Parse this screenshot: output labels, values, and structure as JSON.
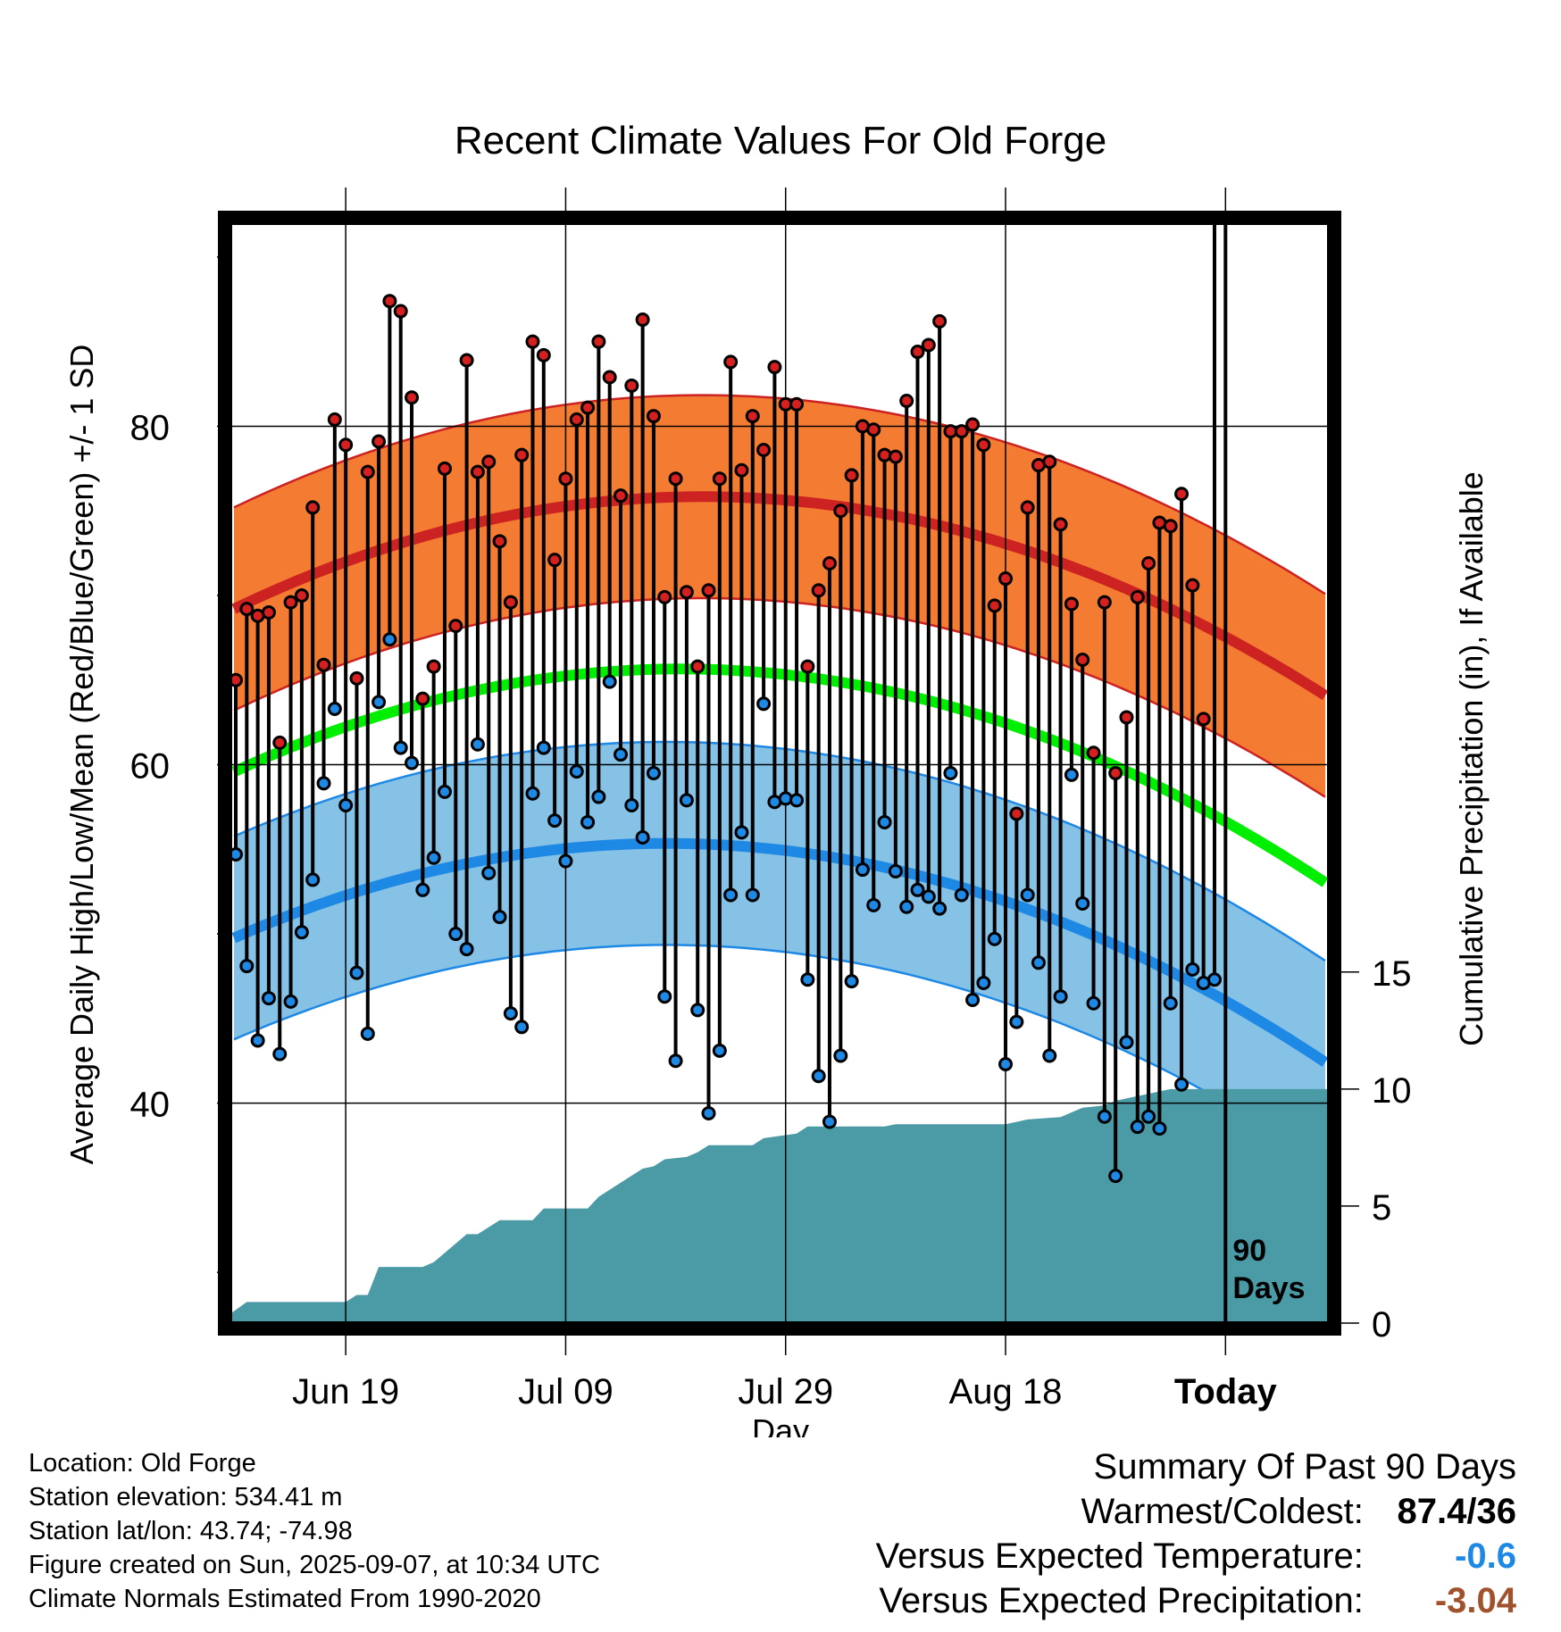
{
  "chart_data": {
    "type": "line",
    "title": "Recent Climate Values For Old Forge",
    "xlabel": "Day",
    "ylabel": "Average Daily High/Low/Mean (Red/Blue/Green) +/- 1 SD",
    "y2label": "Cumulative Precipitation (in), If Available",
    "ylim": [
      27,
      92
    ],
    "y2lim": [
      0,
      47
    ],
    "yticks": [
      40,
      60,
      80
    ],
    "y2ticks": [
      0,
      5,
      10,
      15
    ],
    "x_tick_labels": [
      "Jun 19",
      "Jul 09",
      "Jul 29",
      "Aug 18",
      "Today"
    ],
    "x_dates": [
      "2025-06-09",
      "2025-06-10",
      "2025-06-11",
      "2025-06-12",
      "2025-06-13",
      "2025-06-14",
      "2025-06-15",
      "2025-06-16",
      "2025-06-17",
      "2025-06-18",
      "2025-06-19",
      "2025-06-20",
      "2025-06-21",
      "2025-06-22",
      "2025-06-23",
      "2025-06-24",
      "2025-06-25",
      "2025-06-26",
      "2025-06-27",
      "2025-06-28",
      "2025-06-29",
      "2025-06-30",
      "2025-07-01",
      "2025-07-02",
      "2025-07-03",
      "2025-07-04",
      "2025-07-05",
      "2025-07-06",
      "2025-07-07",
      "2025-07-08",
      "2025-07-09",
      "2025-07-10",
      "2025-07-11",
      "2025-07-12",
      "2025-07-13",
      "2025-07-14",
      "2025-07-15",
      "2025-07-16",
      "2025-07-17",
      "2025-07-18",
      "2025-07-19",
      "2025-07-20",
      "2025-07-21",
      "2025-07-22",
      "2025-07-23",
      "2025-07-24",
      "2025-07-25",
      "2025-07-26",
      "2025-07-27",
      "2025-07-28",
      "2025-07-29",
      "2025-07-30",
      "2025-07-31",
      "2025-08-01",
      "2025-08-02",
      "2025-08-03",
      "2025-08-04",
      "2025-08-05",
      "2025-08-06",
      "2025-08-07",
      "2025-08-08",
      "2025-08-09",
      "2025-08-10",
      "2025-08-11",
      "2025-08-12",
      "2025-08-13",
      "2025-08-14",
      "2025-08-15",
      "2025-08-16",
      "2025-08-17",
      "2025-08-18",
      "2025-08-19",
      "2025-08-20",
      "2025-08-21",
      "2025-08-22",
      "2025-08-23",
      "2025-08-24",
      "2025-08-25",
      "2025-08-26",
      "2025-08-27",
      "2025-08-28",
      "2025-08-29",
      "2025-08-30",
      "2025-08-31",
      "2025-09-01",
      "2025-09-02",
      "2025-09-03",
      "2025-09-04",
      "2025-09-05",
      "2025-09-06"
    ],
    "series": [
      {
        "name": "High",
        "color": "#cc2222",
        "values": [
          65,
          69.2,
          68.8,
          69,
          61.3,
          69.6,
          70,
          75.2,
          65.9,
          80.4,
          78.9,
          65.1,
          77.3,
          79.1,
          87.4,
          86.8,
          81.7,
          63.9,
          65.8,
          77.5,
          68.2,
          83.9,
          77.3,
          77.9,
          73.2,
          69.6,
          78.3,
          85,
          84.2,
          72.1,
          76.9,
          80.4,
          81.1,
          85,
          82.9,
          75.9,
          82.4,
          86.3,
          80.6,
          69.9,
          76.9,
          70.2,
          65.8,
          70.3,
          76.9,
          83.8,
          77.4,
          80.6,
          78.6,
          83.5,
          81.3,
          81.3,
          65.8,
          70.3,
          71.9,
          75,
          77.1,
          80,
          79.8,
          78.3,
          78.2,
          81.5,
          84.4,
          84.8,
          86.2,
          79.7,
          79.7,
          80.1,
          78.9,
          69.4,
          71,
          57.1,
          75.2,
          77.7,
          77.9,
          74.2,
          69.5,
          66.2,
          60.7,
          69.6,
          59.5,
          62.8,
          69.9,
          71.9,
          74.3,
          74.1,
          76,
          70.6,
          62.7
        ]
      },
      {
        "name": "Low",
        "color": "#1e88e5",
        "values": [
          54.7,
          48.1,
          43.7,
          46.2,
          42.9,
          46,
          50.1,
          53.2,
          58.9,
          63.3,
          57.6,
          47.7,
          44.1,
          63.7,
          67.4,
          61,
          60.1,
          52.6,
          54.5,
          58.4,
          50,
          49.1,
          61.2,
          53.6,
          51,
          45.3,
          44.5,
          58.3,
          61,
          56.7,
          54.3,
          59.6,
          56.6,
          58.1,
          64.9,
          60.6,
          57.6,
          55.7,
          59.5,
          46.3,
          42.5,
          57.9,
          45.5,
          39.4,
          43.1,
          52.3,
          56,
          52.3,
          63.6,
          57.8,
          58,
          57.9,
          47.3,
          41.6,
          38.9,
          42.8,
          47.2,
          53.8,
          51.7,
          56.6,
          53.7,
          51.6,
          52.6,
          52.2,
          51.5,
          59.5,
          52.3,
          46.1,
          47.1,
          49.7,
          42.3,
          44.8,
          52.3,
          48.3,
          42.8,
          46.3,
          59.4,
          51.8,
          45.9,
          39.2,
          35.7,
          43.6,
          38.6,
          39.2,
          38.5,
          45.9,
          41.1,
          47.9,
          47.1,
          47.3
        ]
      },
      {
        "name": "Normal High",
        "color": "#cc2222",
        "values_at_ticks": [
          72,
          75.3,
          75.5,
          73.2,
          67.5
        ],
        "sd": 6
      },
      {
        "name": "Normal Mean",
        "color": "#00ee00",
        "values_at_ticks": [
          62.3,
          65.2,
          65.1,
          62.8,
          56.5
        ]
      },
      {
        "name": "Normal Low",
        "color": "#1e88e5",
        "values_at_ticks": [
          52.3,
          55,
          54.9,
          52,
          46
        ],
        "sd": 6
      }
    ],
    "precip_cumulative": {
      "color": "#4a9ba6",
      "x_breaks": [
        "2025-06-09",
        "2025-06-10",
        "2025-06-19",
        "2025-06-20",
        "2025-06-21",
        "2025-06-22",
        "2025-06-26",
        "2025-06-27",
        "2025-06-29",
        "2025-06-30",
        "2025-07-01",
        "2025-07-03",
        "2025-07-06",
        "2025-07-07",
        "2025-07-11",
        "2025-07-12",
        "2025-07-13",
        "2025-07-14",
        "2025-07-15",
        "2025-07-16",
        "2025-07-17",
        "2025-07-18",
        "2025-07-20",
        "2025-07-21",
        "2025-07-22",
        "2025-07-26",
        "2025-07-27",
        "2025-07-30",
        "2025-07-31",
        "2025-08-07",
        "2025-08-08",
        "2025-08-18",
        "2025-08-20",
        "2025-08-23",
        "2025-08-25",
        "2025-08-27",
        "2025-08-28",
        "2025-08-30",
        "2025-08-31",
        "2025-09-01",
        "2025-09-02",
        "2025-09-06"
      ],
      "values": [
        0.4,
        0.9,
        0.9,
        1.2,
        1.2,
        2.4,
        2.4,
        2.6,
        3.4,
        3.8,
        3.8,
        4.4,
        4.4,
        4.9,
        4.9,
        5.4,
        5.7,
        6.0,
        6.3,
        6.6,
        6.7,
        7.0,
        7.1,
        7.3,
        7.6,
        7.6,
        7.9,
        8.1,
        8.4,
        8.4,
        8.5,
        8.5,
        8.7,
        8.8,
        9.2,
        9.3,
        9.5,
        9.7,
        9.8,
        9.9,
        10.0,
        10.0
      ]
    },
    "vertical_marker": {
      "label_line1": "90",
      "label_line2": "Days"
    },
    "grid": true,
    "legend": "none"
  },
  "footer": {
    "location": "Location: Old Forge",
    "elevation": "Station elevation: 534.41 m",
    "latlon": "Station lat/lon: 43.74; -74.98",
    "created": "Figure created on Sun, 2025-09-07, at 10:34 UTC",
    "normals": "Climate Normals Estimated From 1990-2020"
  },
  "summary": {
    "heading": "Summary Of Past 90 Days",
    "warmest_label": "Warmest/Coldest:",
    "warmest_value": "87.4/36",
    "temp_label": "Versus Expected Temperature:",
    "temp_value": "-0.6",
    "temp_color": "#1e88e5",
    "precip_label": "Versus Expected Precipitation:",
    "precip_value": "-3.04",
    "precip_color": "#a0522d"
  }
}
